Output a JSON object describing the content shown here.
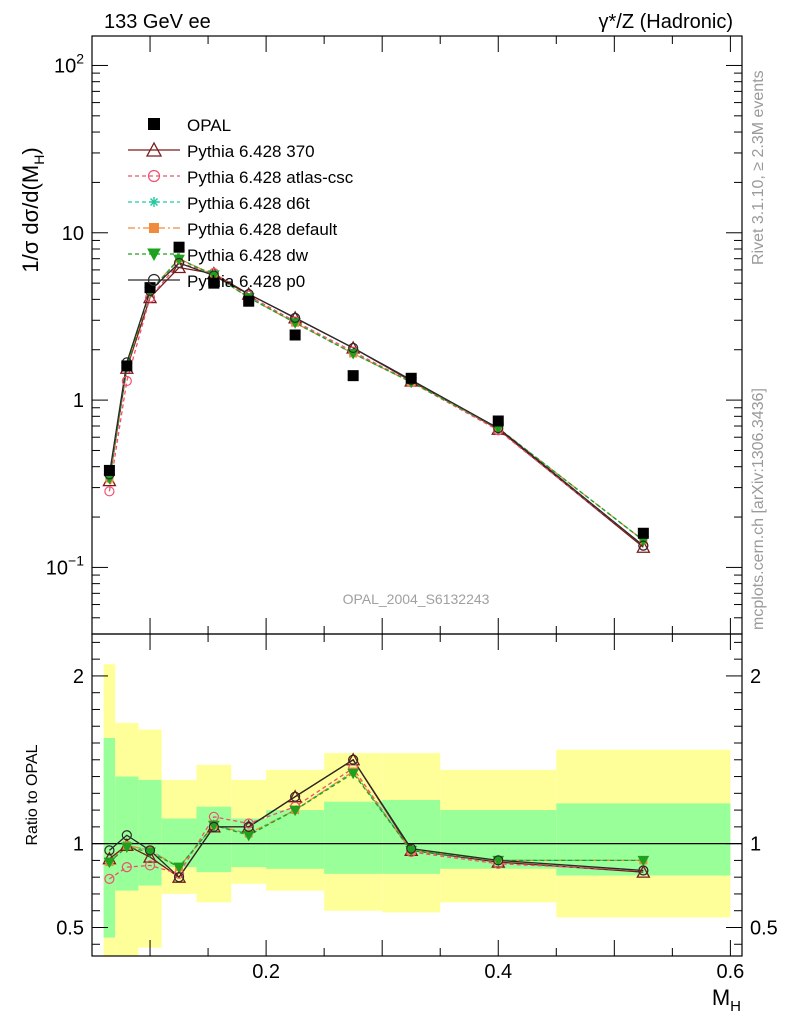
{
  "header": {
    "left": "133 GeV ee",
    "right": "γ*/Z (Hadronic)"
  },
  "side_text": {
    "rivet": "Rivet 3.1.10, ≥ 2.3M events",
    "mcplots": "mcplots.cern.ch [arXiv:1306.3436]"
  },
  "analysis_id": "OPAL_2004_S6132243",
  "colors": {
    "data": "#000000",
    "p370": "#7a1a1a",
    "atlas": "#f0506e",
    "d6t": "#1fc9a0",
    "default": "#f08a3c",
    "dw": "#1ea11e",
    "p0": "#2a2a2a",
    "band_outer": "#ffff99",
    "band_inner": "#99ff99"
  },
  "chart_data": [
    {
      "panel": "main",
      "type": "line",
      "ylabel": "1/σ dσ/d(M_H)",
      "yscale": "log",
      "ylim": [
        0.04,
        150
      ],
      "xlim": [
        0.05,
        0.61
      ],
      "yticks": [
        {
          "value": 100,
          "label": "10",
          "sup": "2"
        },
        {
          "value": 10,
          "label": "10",
          "sup": ""
        },
        {
          "value": 1,
          "label": "1",
          "sup": ""
        },
        {
          "value": 0.1,
          "label": "10",
          "sup": "−1"
        }
      ],
      "x": [
        0.065,
        0.08,
        0.1,
        0.125,
        0.155,
        0.185,
        0.225,
        0.275,
        0.325,
        0.4,
        0.525
      ],
      "data": {
        "name": "OPAL",
        "values": [
          0.38,
          1.6,
          4.7,
          8.2,
          5.0,
          3.9,
          2.45,
          1.4,
          1.35,
          0.75,
          0.16
        ]
      },
      "series": [
        {
          "name": "Pythia 6.428 370",
          "key": "p370",
          "marker": "triangle-up-open",
          "dash": "",
          "values": [
            0.33,
            1.55,
            4.1,
            6.2,
            5.7,
            4.3,
            3.1,
            2.05,
            1.3,
            0.67,
            0.132
          ]
        },
        {
          "name": "Pythia 6.428 atlas-csc",
          "key": "atlas",
          "marker": "circle-open",
          "dash": "4,3",
          "values": [
            0.285,
            1.3,
            4.1,
            6.6,
            5.75,
            4.2,
            2.95,
            1.95,
            1.28,
            0.66,
            0.135
          ]
        },
        {
          "name": "Pythia 6.428 d6t",
          "key": "d6t",
          "marker": "star",
          "dash": "4,3",
          "values": [
            0.34,
            1.6,
            4.5,
            7.0,
            5.6,
            4.1,
            2.9,
            1.9,
            1.28,
            0.68,
            0.145
          ]
        },
        {
          "name": "Pythia 6.428 default",
          "key": "default",
          "marker": "square-filled",
          "dash": "7,3,2,3",
          "values": [
            0.34,
            1.6,
            4.5,
            7.0,
            5.6,
            4.1,
            2.9,
            1.9,
            1.28,
            0.68,
            0.145
          ]
        },
        {
          "name": "Pythia 6.428 dw",
          "key": "dw",
          "marker": "triangle-down-filled",
          "dash": "4,3",
          "values": [
            0.34,
            1.58,
            4.45,
            6.95,
            5.6,
            4.1,
            2.9,
            1.9,
            1.28,
            0.68,
            0.145
          ]
        },
        {
          "name": "Pythia 6.428 p0",
          "key": "p0",
          "marker": "circle-open",
          "dash": "",
          "values": [
            0.36,
            1.68,
            4.5,
            6.6,
            5.55,
            4.3,
            3.1,
            2.05,
            1.32,
            0.68,
            0.135
          ]
        }
      ]
    },
    {
      "panel": "ratio",
      "type": "line",
      "ylabel": "Ratio to OPAL",
      "xlabel": "M_H",
      "xlim": [
        0.05,
        0.61
      ],
      "ylim": [
        0.33,
        2.25
      ],
      "xticks": [
        {
          "value": 0.2,
          "label": "0.2"
        },
        {
          "value": 0.4,
          "label": "0.4"
        },
        {
          "value": 0.6,
          "label": "0.6"
        }
      ],
      "yticks": [
        {
          "value": 2,
          "label": "2"
        },
        {
          "value": 1,
          "label": "1"
        },
        {
          "value": 0.5,
          "label": "0.5"
        }
      ],
      "bins": [
        {
          "lo": 0.06,
          "hi": 0.07,
          "outer": [
            0.3,
            2.07
          ],
          "inner": [
            0.44,
            1.63
          ]
        },
        {
          "lo": 0.07,
          "hi": 0.09,
          "outer": [
            0.3,
            1.72
          ],
          "inner": [
            0.72,
            1.4
          ]
        },
        {
          "lo": 0.09,
          "hi": 0.11,
          "outer": [
            0.38,
            1.68
          ],
          "inner": [
            0.75,
            1.38
          ]
        },
        {
          "lo": 0.11,
          "hi": 0.14,
          "outer": [
            0.7,
            1.38
          ],
          "inner": [
            0.86,
            1.15
          ]
        },
        {
          "lo": 0.14,
          "hi": 0.17,
          "outer": [
            0.65,
            1.47
          ],
          "inner": [
            0.83,
            1.22
          ]
        },
        {
          "lo": 0.17,
          "hi": 0.2,
          "outer": [
            0.76,
            1.38
          ],
          "inner": [
            0.86,
            1.15
          ]
        },
        {
          "lo": 0.2,
          "hi": 0.25,
          "outer": [
            0.72,
            1.44
          ],
          "inner": [
            0.85,
            1.2
          ]
        },
        {
          "lo": 0.25,
          "hi": 0.3,
          "outer": [
            0.6,
            1.54
          ],
          "inner": [
            0.82,
            1.25
          ]
        },
        {
          "lo": 0.3,
          "hi": 0.35,
          "outer": [
            0.59,
            1.54
          ],
          "inner": [
            0.82,
            1.26
          ]
        },
        {
          "lo": 0.35,
          "hi": 0.45,
          "outer": [
            0.65,
            1.44
          ],
          "inner": [
            0.85,
            1.2
          ]
        },
        {
          "lo": 0.45,
          "hi": 0.6,
          "outer": [
            0.56,
            1.56
          ],
          "inner": [
            0.81,
            1.24
          ]
        }
      ],
      "x": [
        0.065,
        0.08,
        0.1,
        0.125,
        0.155,
        0.185,
        0.225,
        0.275,
        0.325,
        0.4,
        0.525
      ],
      "series": [
        {
          "name": "Pythia 6.428 370",
          "key": "p370",
          "marker": "triangle-up-open",
          "dash": "",
          "values": [
            0.91,
            0.99,
            0.92,
            0.8,
            1.1,
            1.1,
            1.28,
            1.5,
            0.96,
            0.89,
            0.83
          ]
        },
        {
          "name": "Pythia 6.428 atlas-csc",
          "key": "atlas",
          "marker": "circle-open",
          "dash": "4,3",
          "values": [
            0.79,
            0.86,
            0.87,
            0.82,
            1.16,
            1.12,
            1.22,
            1.45,
            0.95,
            0.88,
            0.84
          ]
        },
        {
          "name": "Pythia 6.428 d6t",
          "key": "d6t",
          "marker": "star",
          "dash": "4,3",
          "values": [
            0.89,
            0.99,
            0.96,
            0.86,
            1.11,
            1.06,
            1.2,
            1.43,
            0.96,
            0.9,
            0.9
          ]
        },
        {
          "name": "Pythia 6.428 default",
          "key": "default",
          "marker": "square-filled",
          "dash": "7,3,2,3",
          "values": [
            0.89,
            0.99,
            0.96,
            0.86,
            1.11,
            1.06,
            1.2,
            1.43,
            0.96,
            0.9,
            0.9
          ]
        },
        {
          "name": "Pythia 6.428 dw",
          "key": "dw",
          "marker": "triangle-down-filled",
          "dash": "4,3",
          "values": [
            0.89,
            0.98,
            0.95,
            0.86,
            1.11,
            1.05,
            1.2,
            1.42,
            0.96,
            0.9,
            0.9
          ]
        },
        {
          "name": "Pythia 6.428 p0",
          "key": "p0",
          "marker": "circle-open",
          "dash": "",
          "values": [
            0.96,
            1.05,
            0.96,
            0.8,
            1.1,
            1.1,
            1.28,
            1.5,
            0.97,
            0.9,
            0.84
          ]
        }
      ]
    }
  ]
}
